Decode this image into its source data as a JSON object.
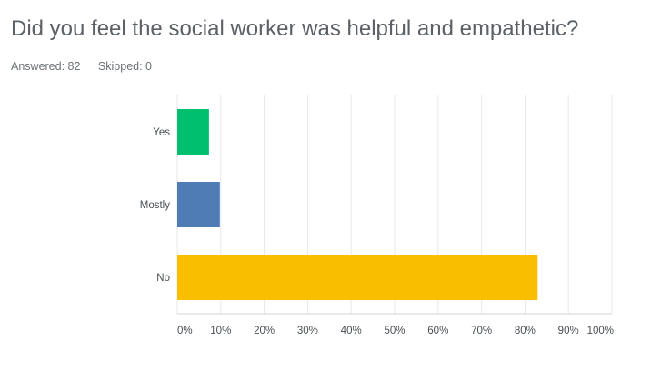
{
  "question": {
    "title": "Did you feel the social worker was helpful and empathetic?",
    "answered_label": "Answered: 82",
    "skipped_label": "Skipped: 0"
  },
  "chart_data": {
    "type": "bar",
    "orientation": "horizontal",
    "categories": [
      "Yes",
      "Mostly",
      "No"
    ],
    "values": [
      7.3,
      9.8,
      82.9
    ],
    "colors": [
      "#00bf6f",
      "#507cb6",
      "#f9be00"
    ],
    "xlim": [
      0,
      100
    ],
    "xticks": [
      0,
      10,
      20,
      30,
      40,
      50,
      60,
      70,
      80,
      90,
      100
    ],
    "xtick_labels": [
      "0%",
      "10%",
      "20%",
      "30%",
      "40%",
      "50%",
      "60%",
      "70%",
      "80%",
      "90%",
      "100%"
    ],
    "grid": true
  }
}
